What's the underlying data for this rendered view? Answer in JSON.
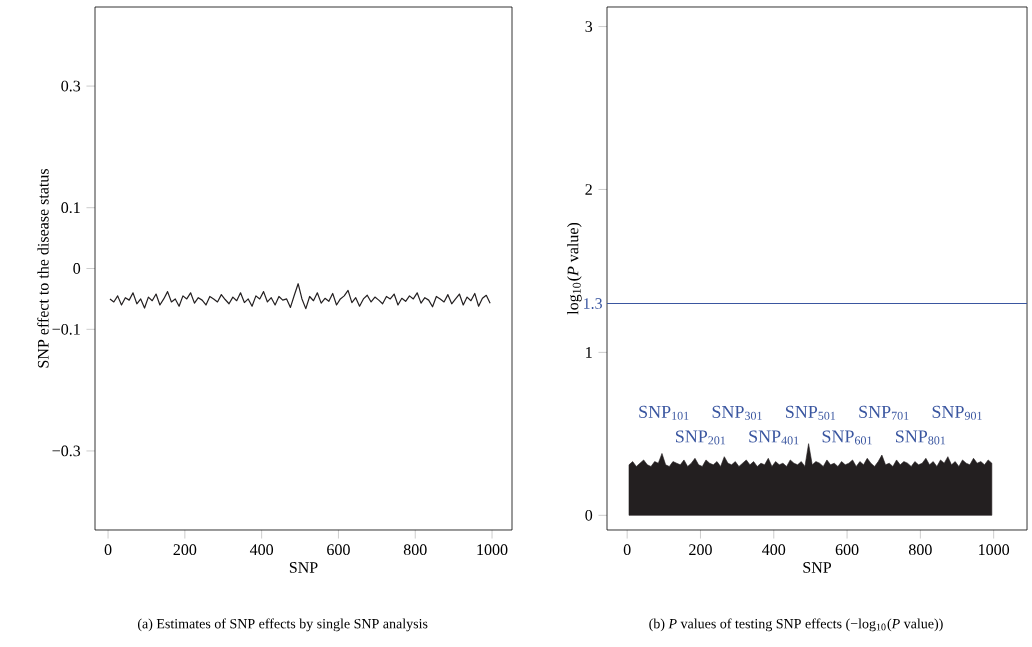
{
  "chart_data": [
    {
      "type": "line",
      "xlabel": "SNP",
      "ylabel": "SNP effect to the disease status",
      "xlim": [
        -34,
        1052
      ],
      "ylim": [
        -0.43,
        0.43
      ],
      "xticks": [
        0,
        200,
        400,
        600,
        800,
        1000
      ],
      "yticks": [
        {
          "value": -0.3,
          "label": "−0.3"
        },
        {
          "value": -0.1,
          "label": "−0.1"
        },
        0,
        0.1,
        0.3
      ],
      "x": [
        5,
        15,
        25,
        35,
        45,
        55,
        65,
        75,
        85,
        95,
        105,
        115,
        125,
        135,
        145,
        155,
        165,
        175,
        185,
        195,
        205,
        215,
        225,
        235,
        245,
        255,
        265,
        275,
        285,
        295,
        305,
        315,
        325,
        335,
        345,
        355,
        365,
        375,
        385,
        395,
        405,
        415,
        425,
        435,
        445,
        455,
        465,
        475,
        485,
        495,
        505,
        515,
        525,
        535,
        545,
        555,
        565,
        575,
        585,
        595,
        605,
        615,
        625,
        635,
        645,
        655,
        665,
        675,
        685,
        695,
        705,
        715,
        725,
        735,
        745,
        755,
        765,
        775,
        785,
        795,
        805,
        815,
        825,
        835,
        845,
        855,
        865,
        875,
        885,
        895,
        905,
        915,
        925,
        935,
        945,
        955,
        965,
        975,
        985,
        995
      ],
      "series": [
        {
          "color": "#231f20",
          "values": [
            -0.05,
            -0.055,
            -0.045,
            -0.06,
            -0.048,
            -0.052,
            -0.04,
            -0.058,
            -0.05,
            -0.065,
            -0.047,
            -0.053,
            -0.042,
            -0.06,
            -0.05,
            -0.038,
            -0.055,
            -0.05,
            -0.062,
            -0.045,
            -0.05,
            -0.04,
            -0.057,
            -0.048,
            -0.052,
            -0.06,
            -0.046,
            -0.05,
            -0.055,
            -0.043,
            -0.051,
            -0.058,
            -0.047,
            -0.053,
            -0.04,
            -0.056,
            -0.05,
            -0.062,
            -0.045,
            -0.05,
            -0.038,
            -0.055,
            -0.048,
            -0.06,
            -0.046,
            -0.052,
            -0.05,
            -0.064,
            -0.044,
            -0.025,
            -0.05,
            -0.066,
            -0.046,
            -0.053,
            -0.04,
            -0.057,
            -0.049,
            -0.054,
            -0.041,
            -0.06,
            -0.05,
            -0.045,
            -0.036,
            -0.056,
            -0.048,
            -0.062,
            -0.05,
            -0.044,
            -0.055,
            -0.047,
            -0.052,
            -0.058,
            -0.046,
            -0.05,
            -0.042,
            -0.06,
            -0.049,
            -0.054,
            -0.045,
            -0.05,
            -0.04,
            -0.057,
            -0.048,
            -0.052,
            -0.063,
            -0.046,
            -0.05,
            -0.055,
            -0.043,
            -0.058,
            -0.05,
            -0.042,
            -0.06,
            -0.047,
            -0.053,
            -0.041,
            -0.062,
            -0.049,
            -0.044,
            -0.057
          ]
        }
      ],
      "annotations": [
        "(a)  Estimates of SNP effects by single SNP analysis"
      ]
    },
    {
      "type": "area",
      "xlabel": "SNP",
      "ylabel": "log$_{10}$(*P* value)",
      "xlim": [
        -55,
        1091
      ],
      "ylim": [
        -0.09,
        3.12
      ],
      "xticks": [
        0,
        200,
        400,
        600,
        800,
        1000
      ],
      "yticks": [
        0,
        1,
        2,
        3
      ],
      "x": [
        5,
        15,
        25,
        35,
        45,
        55,
        65,
        75,
        85,
        95,
        105,
        115,
        125,
        135,
        145,
        155,
        165,
        175,
        185,
        195,
        205,
        215,
        225,
        235,
        245,
        255,
        265,
        275,
        285,
        295,
        305,
        315,
        325,
        335,
        345,
        355,
        365,
        375,
        385,
        395,
        405,
        415,
        425,
        435,
        445,
        455,
        465,
        475,
        485,
        495,
        505,
        515,
        525,
        535,
        545,
        555,
        565,
        575,
        585,
        595,
        605,
        615,
        625,
        635,
        645,
        655,
        665,
        675,
        685,
        695,
        705,
        715,
        725,
        735,
        745,
        755,
        765,
        775,
        785,
        795,
        805,
        815,
        825,
        835,
        845,
        855,
        865,
        875,
        885,
        895,
        905,
        915,
        925,
        935,
        945,
        955,
        965,
        975,
        985,
        995
      ],
      "series": [
        {
          "color": "#231f20",
          "values": [
            0.31,
            0.33,
            0.3,
            0.32,
            0.34,
            0.31,
            0.3,
            0.33,
            0.32,
            0.38,
            0.31,
            0.3,
            0.33,
            0.32,
            0.31,
            0.34,
            0.3,
            0.32,
            0.35,
            0.31,
            0.3,
            0.34,
            0.32,
            0.31,
            0.33,
            0.3,
            0.36,
            0.32,
            0.31,
            0.33,
            0.3,
            0.32,
            0.34,
            0.31,
            0.33,
            0.3,
            0.32,
            0.31,
            0.35,
            0.3,
            0.33,
            0.31,
            0.32,
            0.3,
            0.34,
            0.32,
            0.31,
            0.33,
            0.3,
            0.44,
            0.31,
            0.33,
            0.32,
            0.3,
            0.34,
            0.31,
            0.32,
            0.3,
            0.33,
            0.31,
            0.32,
            0.34,
            0.3,
            0.33,
            0.31,
            0.35,
            0.32,
            0.3,
            0.33,
            0.37,
            0.31,
            0.32,
            0.3,
            0.34,
            0.31,
            0.33,
            0.32,
            0.3,
            0.33,
            0.31,
            0.32,
            0.35,
            0.31,
            0.33,
            0.3,
            0.34,
            0.32,
            0.36,
            0.31,
            0.33,
            0.3,
            0.34,
            0.32,
            0.31,
            0.35,
            0.32,
            0.33,
            0.31,
            0.34,
            0.32
          ]
        }
      ],
      "ref_lines": [
        {
          "axis": "y",
          "value": 1.3,
          "label": "1.3",
          "color": "#3a56a0"
        }
      ],
      "annotations": [
        "SNP$_{101}$",
        "SNP$_{201}$",
        "SNP$_{301}$",
        "SNP$_{401}$",
        "SNP$_{501}$",
        "SNP$_{601}$",
        "SNP$_{701}$",
        "SNP$_{801}$",
        "SNP$_{901}$",
        "(b)  *P* values of testing SNP effects (−log$_{10}$(*P* value))"
      ]
    }
  ]
}
